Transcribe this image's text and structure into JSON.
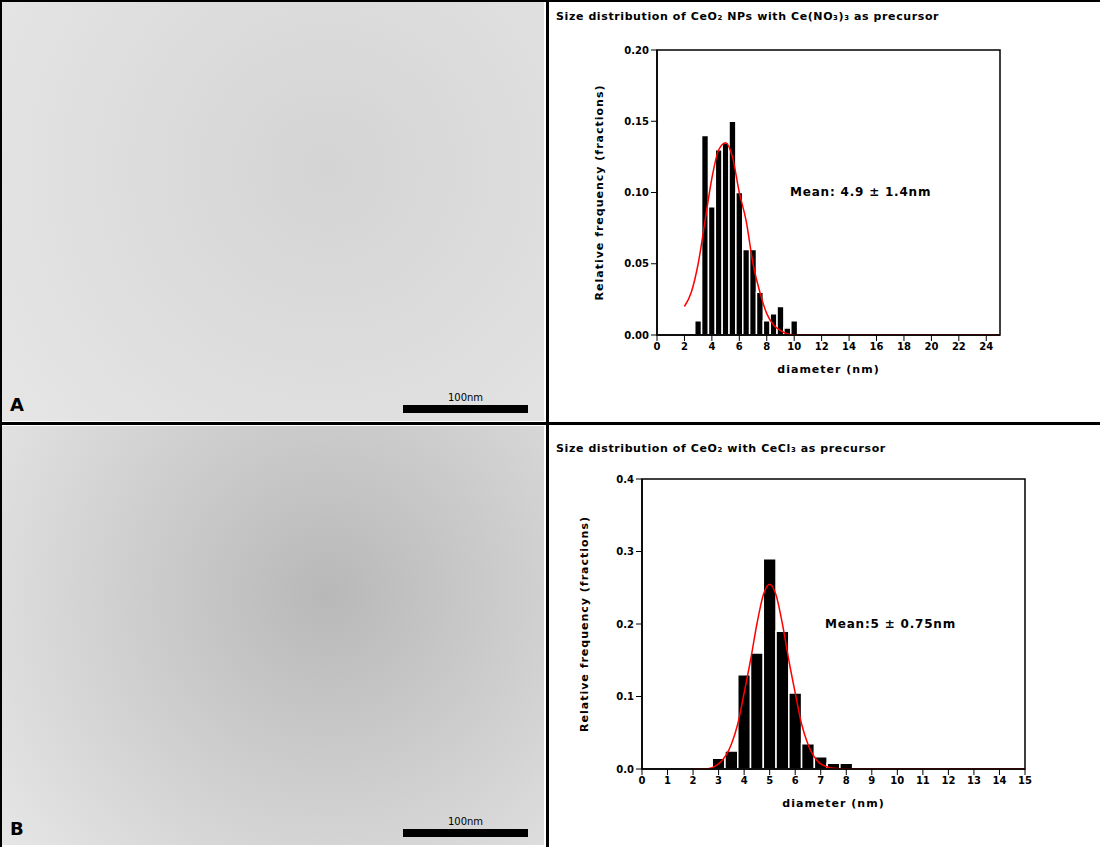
{
  "chart_data": [
    {
      "type": "histogram",
      "panel": "A",
      "scale_bar": "100nm",
      "title": "Size distribution of CeO₂ NPs with Ce(NO₃)₃ as precursor",
      "x_label": "diameter (nm)",
      "y_label": "Relative frequency (fractions)",
      "annotations": [
        "Mean: 4.9 ± 1.4nm"
      ],
      "bins": [
        2.75,
        3.25,
        3.75,
        4.25,
        4.75,
        5.25,
        5.75,
        6.25,
        6.75,
        7.25,
        7.75,
        8.25,
        8.75,
        9.25,
        9.75,
        10.25
      ],
      "counts": [
        0.01,
        0.14,
        0.09,
        0.13,
        0.135,
        0.15,
        0.1,
        0.06,
        0.06,
        0.03,
        0.01,
        0.015,
        0.02,
        0.005,
        0.01
      ],
      "color": "#000000",
      "fit": {
        "type": "line",
        "color": "#ff0000",
        "x": [
          2,
          2.5,
          3,
          3.5,
          4,
          4.5,
          5,
          5.5,
          6,
          6.5,
          7,
          7.5,
          8,
          8.5,
          9,
          10,
          12,
          25
        ],
        "values": [
          0.02,
          0.03,
          0.05,
          0.08,
          0.11,
          0.13,
          0.135,
          0.125,
          0.1,
          0.08,
          0.05,
          0.03,
          0.015,
          0.007,
          0.003,
          0,
          0,
          0
        ]
      },
      "xlim": [
        0,
        25
      ],
      "xticks": [
        0,
        2,
        4,
        6,
        8,
        10,
        12,
        14,
        16,
        18,
        20,
        22,
        24
      ],
      "ylim": [
        0,
        0.2
      ],
      "yticks": [
        {
          "value": 0,
          "label": "0.00"
        },
        {
          "value": 0.05,
          "label": "0.05"
        },
        {
          "value": 0.1,
          "label": "0.10"
        },
        {
          "value": 0.15,
          "label": "0.15"
        },
        {
          "value": 0.2,
          "label": "0.20"
        }
      ],
      "grid": false
    },
    {
      "type": "histogram",
      "panel": "B",
      "scale_bar": "100nm",
      "title": "Size distribution of CeO₂ with CeCl₃ as precursor",
      "x_label": "diameter (nm)",
      "y_label": "Relative frequency (fractions)",
      "annotations": [
        "Mean:5 ± 0.75nm"
      ],
      "bins": [
        2.75,
        3.25,
        3.75,
        4.25,
        4.75,
        5.25,
        5.75,
        6.25,
        6.75,
        7.25,
        7.75,
        8.25
      ],
      "counts": [
        0.015,
        0.025,
        0.13,
        0.16,
        0.29,
        0.19,
        0.105,
        0.035,
        0.017,
        0.008,
        0.008
      ],
      "color": "#000000",
      "fit": {
        "type": "line",
        "color": "#ff0000",
        "x": [
          2,
          2.5,
          3,
          3.5,
          3.75,
          4,
          4.25,
          4.5,
          4.75,
          5,
          5.25,
          5.5,
          5.75,
          6,
          6.25,
          6.5,
          7,
          7.5,
          8,
          10,
          15
        ],
        "values": [
          0,
          0,
          0.007,
          0.034,
          0.062,
          0.105,
          0.15,
          0.2,
          0.24,
          0.255,
          0.24,
          0.2,
          0.15,
          0.105,
          0.062,
          0.034,
          0.007,
          0.001,
          0,
          0,
          0
        ]
      },
      "xlim": [
        0,
        15
      ],
      "xticks": [
        0,
        1,
        2,
        3,
        4,
        5,
        6,
        7,
        8,
        9,
        10,
        11,
        12,
        13,
        14,
        15
      ],
      "ylim": [
        0,
        0.4
      ],
      "yticks": [
        {
          "value": 0,
          "label": "0.0"
        },
        {
          "value": 0.1,
          "label": "0.1"
        },
        {
          "value": 0.2,
          "label": "0.2"
        },
        {
          "value": 0.3,
          "label": "0.3"
        },
        {
          "value": 0.4,
          "label": "0.4"
        }
      ],
      "grid": false
    }
  ]
}
